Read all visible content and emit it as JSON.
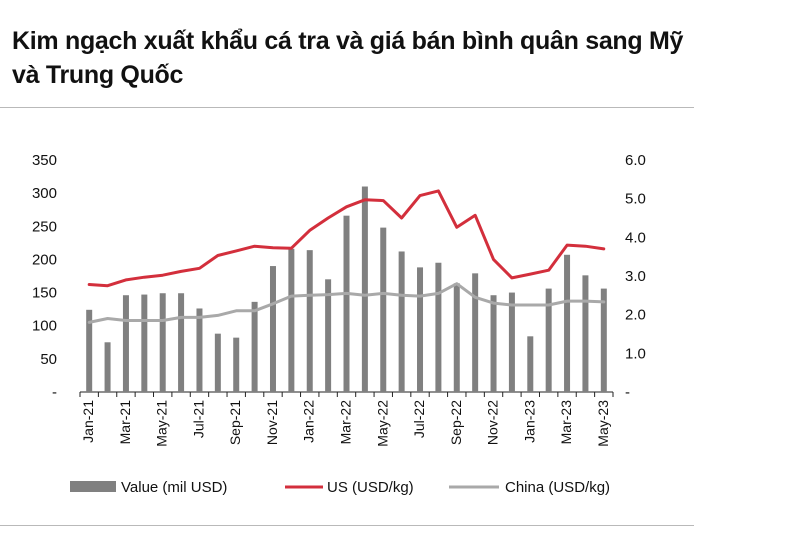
{
  "title": "Kim ngạch xuất khẩu cá tra và giá bán bình quân sang Mỹ và Trung Quốc",
  "colors": {
    "bar": "#808080",
    "us": "#d32f3c",
    "china": "#a9a9a9",
    "axis": "#222222"
  },
  "chart_data": {
    "type": "bar+line",
    "title": "Kim ngạch xuất khẩu cá tra và giá bán bình quân sang Mỹ và Trung Quốc",
    "categories": [
      "Jan-21",
      "Feb-21",
      "Mar-21",
      "Apr-21",
      "May-21",
      "Jun-21",
      "Jul-21",
      "Aug-21",
      "Sep-21",
      "Oct-21",
      "Nov-21",
      "Dec-21",
      "Jan-22",
      "Feb-22",
      "Mar-22",
      "Apr-22",
      "May-22",
      "Jun-22",
      "Jul-22",
      "Aug-22",
      "Sep-22",
      "Oct-22",
      "Nov-22",
      "Dec-22",
      "Jan-23",
      "Feb-23",
      "Mar-23",
      "Apr-23",
      "May-23"
    ],
    "x_tick_labels": [
      "Jan-21",
      "Mar-21",
      "May-21",
      "Jul-21",
      "Sep-21",
      "Nov-21",
      "Jan-22",
      "Mar-22",
      "May-22",
      "Jul-22",
      "Sep-22",
      "Nov-22",
      "Jan-23",
      "Mar-23",
      "May-23"
    ],
    "y_left": {
      "range": [
        0,
        350
      ],
      "ticks": [
        "-",
        "50",
        "100",
        "150",
        "200",
        "250",
        "300",
        "350"
      ]
    },
    "y_right": {
      "range": [
        0,
        6
      ],
      "ticks": [
        "-",
        "1.0",
        "2.0",
        "3.0",
        "4.0",
        "5.0",
        "6.0"
      ]
    },
    "series": [
      {
        "name": "Value (mil USD)",
        "type": "bar",
        "axis": "left",
        "values": [
          124,
          75,
          146,
          147,
          149,
          149,
          126,
          88,
          82,
          136,
          190,
          216,
          214,
          170,
          266,
          310,
          248,
          212,
          188,
          195,
          164,
          179,
          146,
          150,
          84,
          156,
          207,
          176,
          156
        ]
      },
      {
        "name": "US (USD/kg)",
        "type": "line",
        "axis": "right",
        "values": [
          2.78,
          2.75,
          2.9,
          2.97,
          3.02,
          3.12,
          3.2,
          3.53,
          3.65,
          3.77,
          3.73,
          3.72,
          4.18,
          4.5,
          4.79,
          4.97,
          4.95,
          4.5,
          5.08,
          5.2,
          4.26,
          4.57,
          3.43,
          2.95,
          3.05,
          3.15,
          3.8,
          3.77,
          3.7
        ]
      },
      {
        "name": "China (USD/kg)",
        "type": "line",
        "axis": "right",
        "values": [
          1.8,
          1.9,
          1.85,
          1.85,
          1.85,
          1.93,
          1.93,
          1.98,
          2.1,
          2.1,
          2.28,
          2.48,
          2.5,
          2.52,
          2.55,
          2.5,
          2.55,
          2.5,
          2.48,
          2.55,
          2.8,
          2.45,
          2.3,
          2.25,
          2.25,
          2.25,
          2.35,
          2.35,
          2.33
        ]
      }
    ],
    "legend": "bottom",
    "grid": false
  }
}
